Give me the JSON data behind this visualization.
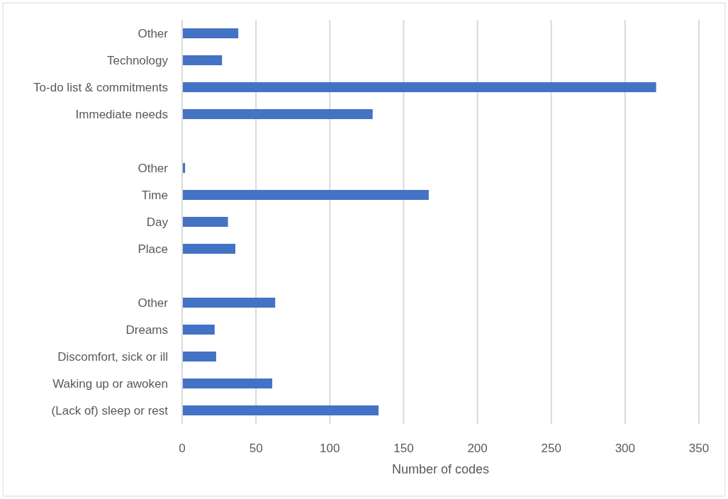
{
  "chart_data": {
    "type": "bar",
    "orientation": "horizontal",
    "xlabel": "Number of codes",
    "categories": [
      "Other",
      "Technology",
      "To-do list & commitments",
      "Immediate needs",
      null,
      "Other",
      "Time",
      "Day",
      "Place",
      null,
      "Other",
      "Dreams",
      "Discomfort, sick or ill",
      "Waking up or awoken",
      "(Lack of) sleep or rest"
    ],
    "values": [
      38,
      27,
      321,
      129,
      null,
      2,
      167,
      31,
      36,
      null,
      63,
      22,
      23,
      61,
      133
    ],
    "color": "#4472c4",
    "xlim": [
      0,
      350
    ],
    "xticks": [
      0,
      50,
      100,
      150,
      200,
      250,
      300,
      350
    ],
    "grid": "x"
  }
}
